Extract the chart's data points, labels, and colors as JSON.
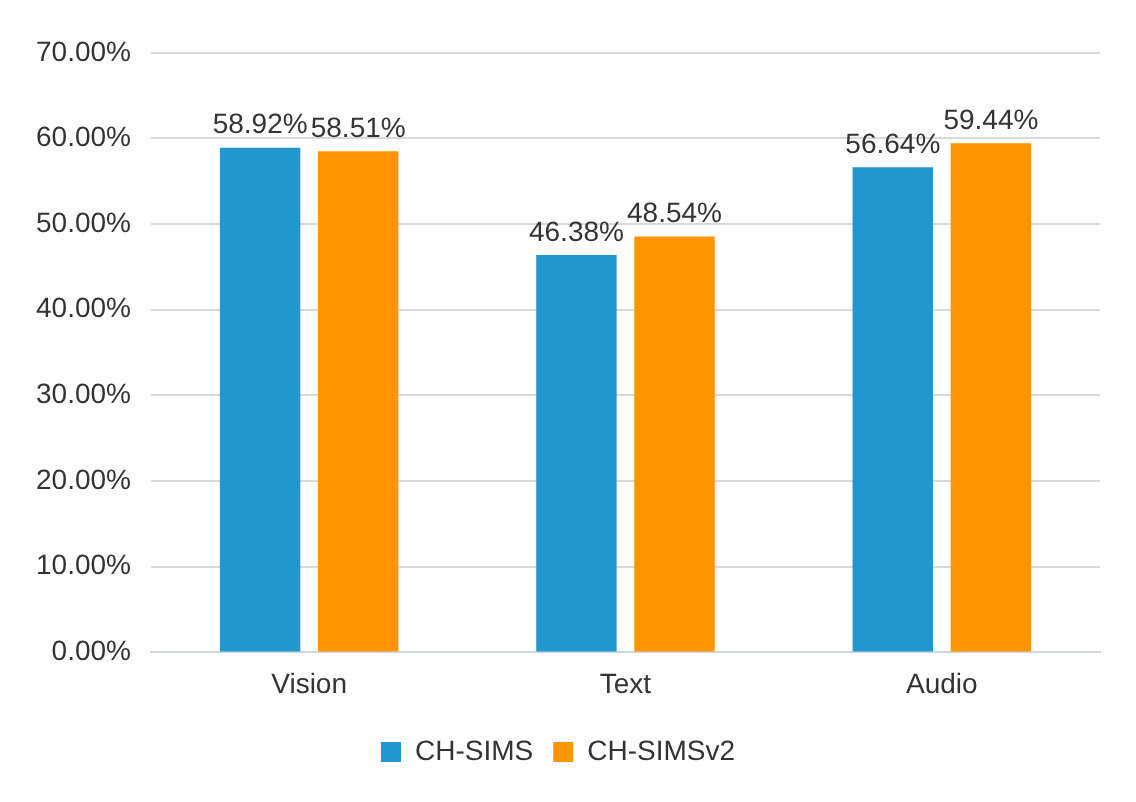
{
  "chart_data": {
    "type": "bar",
    "categories": [
      "Vision",
      "Text",
      "Audio"
    ],
    "series": [
      {
        "name": "CH-SIMS",
        "color": "#2196cf",
        "values": [
          58.92,
          46.38,
          56.64
        ],
        "value_labels": [
          "58.92%",
          "46.38%",
          "56.64%"
        ]
      },
      {
        "name": "CH-SIMSv2",
        "color": "#ff9500",
        "values": [
          58.51,
          48.54,
          59.44
        ],
        "value_labels": [
          "58.51%",
          "48.54%",
          "59.44%"
        ]
      }
    ],
    "ylim": [
      0,
      70
    ],
    "yticks": [
      {
        "value": 0,
        "label": "0.00%"
      },
      {
        "value": 10,
        "label": "10.00%"
      },
      {
        "value": 20,
        "label": "20.00%"
      },
      {
        "value": 30,
        "label": "30.00%"
      },
      {
        "value": 40,
        "label": "40.00%"
      },
      {
        "value": 50,
        "label": "50.00%"
      },
      {
        "value": 60,
        "label": "60.00%"
      },
      {
        "value": 70,
        "label": "70.00%"
      }
    ],
    "grid": "y",
    "legend": "bottom"
  }
}
